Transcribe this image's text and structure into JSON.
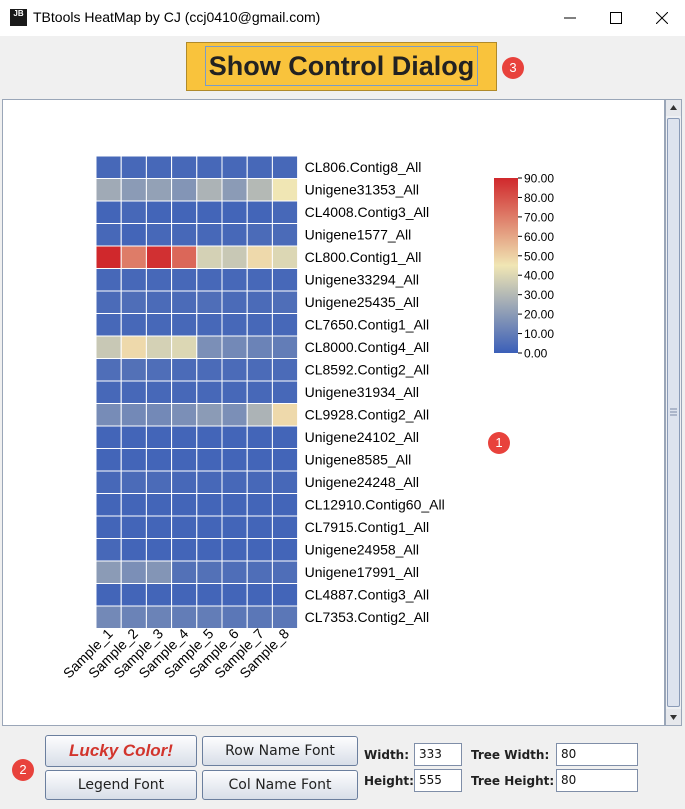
{
  "window": {
    "app_icon": "JB",
    "title": "TBtools HeatMap by CJ (ccj0410@gmail.com)",
    "controls": [
      "minimize-icon",
      "maximize-icon",
      "close-icon"
    ]
  },
  "toolbar": {
    "show_control_label": "Show Control Dialog"
  },
  "badges": {
    "heatmap": "1",
    "controls": "2",
    "show_control": "3"
  },
  "controls": {
    "lucky_color_label": "Lucky Color!",
    "legend_font_label": "Legend Font",
    "row_name_font_label": "Row Name Font",
    "col_name_font_label": "Col Name Font",
    "width_label": "Width:",
    "width_value": "333",
    "height_label": "Height:",
    "height_value": "555",
    "tree_width_label": "Tree Width:",
    "tree_width_value": "80",
    "tree_height_label": "Tree Height:",
    "tree_height_value": "80"
  },
  "colors": {
    "low": "#3b5fb8",
    "mid": "#f0e6b4",
    "high": "#d0282c",
    "accent_button": "#f9c33c",
    "badge": "#e8423c"
  },
  "chart_data": {
    "type": "heatmap",
    "columns": [
      "Sample_1",
      "Sample_2",
      "Sample_3",
      "Sample_4",
      "Sample_5",
      "Sample_6",
      "Sample_7",
      "Sample_8"
    ],
    "rows": [
      "CL806.Contig8_All",
      "Unigene31353_All",
      "CL4008.Contig3_All",
      "Unigene1577_All",
      "CL800.Contig1_All",
      "Unigene33294_All",
      "Unigene25435_All",
      "CL7650.Contig1_All",
      "CL8000.Contig4_All",
      "CL8592.Contig2_All",
      "Unigene31934_All",
      "CL9928.Contig2_All",
      "Unigene24102_All",
      "Unigene8585_All",
      "Unigene24248_All",
      "CL12910.Contig60_All",
      "CL7915.Contig1_All",
      "Unigene24958_All",
      "Unigene17991_All",
      "CL4887.Contig3_All",
      "CL7353.Contig2_All"
    ],
    "values": [
      [
        3,
        3,
        3,
        3,
        3,
        3,
        3,
        3
      ],
      [
        25,
        20,
        22,
        18,
        28,
        20,
        30,
        45
      ],
      [
        2,
        3,
        2,
        2,
        2,
        2,
        2,
        3
      ],
      [
        3,
        2,
        3,
        3,
        3,
        3,
        4,
        4
      ],
      [
        90,
        70,
        88,
        75,
        38,
        35,
        48,
        40
      ],
      [
        3,
        3,
        3,
        3,
        3,
        3,
        3,
        3
      ],
      [
        4,
        5,
        4,
        4,
        5,
        4,
        4,
        5
      ],
      [
        3,
        3,
        3,
        3,
        3,
        3,
        3,
        3
      ],
      [
        35,
        48,
        38,
        40,
        16,
        14,
        12,
        10
      ],
      [
        5,
        6,
        5,
        4,
        4,
        4,
        4,
        4
      ],
      [
        3,
        3,
        3,
        3,
        3,
        3,
        3,
        3
      ],
      [
        15,
        14,
        14,
        16,
        20,
        16,
        28,
        48
      ],
      [
        2,
        2,
        2,
        2,
        2,
        2,
        2,
        2
      ],
      [
        2,
        2,
        2,
        2,
        2,
        2,
        2,
        2
      ],
      [
        3,
        4,
        4,
        3,
        3,
        3,
        3,
        3
      ],
      [
        2,
        2,
        2,
        2,
        2,
        2,
        2,
        2
      ],
      [
        2,
        2,
        2,
        2,
        2,
        2,
        2,
        2
      ],
      [
        3,
        2,
        2,
        2,
        2,
        2,
        2,
        2
      ],
      [
        20,
        16,
        18,
        6,
        6,
        5,
        5,
        5
      ],
      [
        2,
        2,
        2,
        2,
        2,
        2,
        2,
        2
      ],
      [
        14,
        12,
        12,
        10,
        10,
        8,
        8,
        8
      ]
    ],
    "legend": {
      "min": 0,
      "max": 90,
      "ticks": [
        "90.00",
        "80.00",
        "70.00",
        "60.00",
        "50.00",
        "40.00",
        "30.00",
        "20.00",
        "10.00",
        "0.00"
      ]
    }
  }
}
